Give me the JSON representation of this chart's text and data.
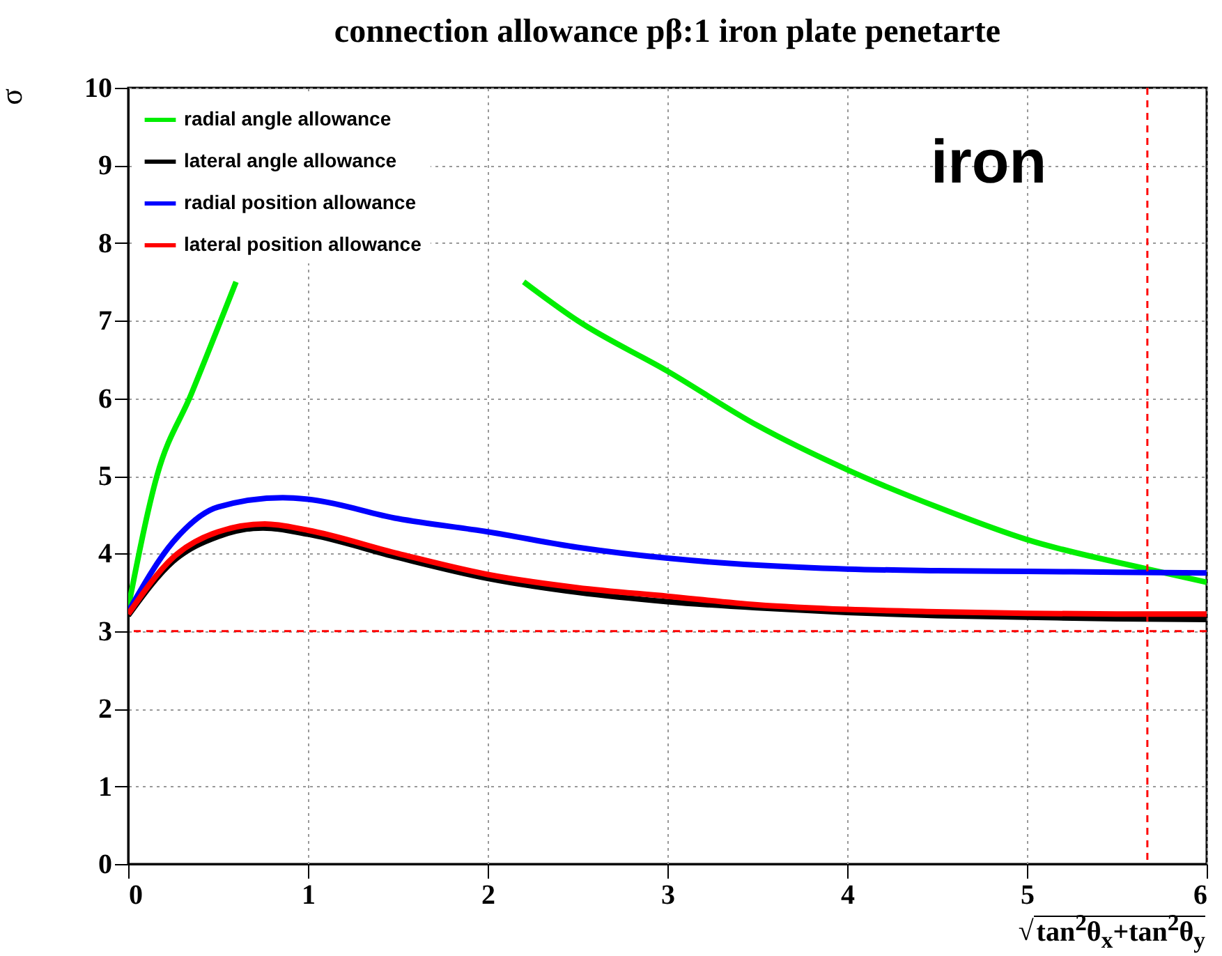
{
  "chart_data": {
    "type": "line",
    "title": "connection allowance pβ:1 iron plate penetarte",
    "xlabel": "√tan$^{2}$θ$_{x}$+tan$^{2}$θ$_{y}$",
    "ylabel": "σ",
    "annotations": [
      "iron"
    ],
    "series": [
      {
        "name": "radial angle allowance",
        "color": "#00ee00",
        "x": [
          0,
          0.16,
          0.35,
          0.6,
          1.0,
          1.5,
          2.2,
          2.5,
          3,
          3.5,
          4,
          4.5,
          5,
          5.67,
          6
        ],
        "values": [
          3.3,
          5.0,
          6.05,
          7.5,
          null,
          null,
          7.5,
          7.0,
          6.35,
          5.65,
          5.08,
          4.6,
          4.18,
          3.8,
          3.63
        ]
      },
      {
        "name": "lateral angle allowance",
        "color": "#000000",
        "x": [
          0,
          0.25,
          0.5,
          0.75,
          1.0,
          1.5,
          2,
          2.5,
          3,
          3.5,
          4,
          4.5,
          5,
          5.5,
          6
        ],
        "values": [
          3.2,
          3.9,
          4.22,
          4.33,
          4.25,
          3.95,
          3.68,
          3.5,
          3.38,
          3.3,
          3.24,
          3.2,
          3.18,
          3.16,
          3.15
        ]
      },
      {
        "name": "radial position allowance",
        "color": "#0000ff",
        "x": [
          0,
          0.25,
          0.5,
          0.86,
          1.0,
          1.5,
          2,
          2.5,
          3,
          3.5,
          4,
          4.5,
          5,
          5.5,
          6
        ],
        "values": [
          3.25,
          4.15,
          4.6,
          4.72,
          4.7,
          4.45,
          4.28,
          4.08,
          3.94,
          3.85,
          3.8,
          3.78,
          3.77,
          3.76,
          3.75
        ]
      },
      {
        "name": "lateral position allowance",
        "color": "#ff0000",
        "x": [
          0,
          0.25,
          0.5,
          0.76,
          1.0,
          1.5,
          2,
          2.5,
          3,
          3.5,
          4,
          4.5,
          5,
          5.5,
          6
        ],
        "values": [
          3.22,
          3.95,
          4.28,
          4.38,
          4.3,
          4.0,
          3.73,
          3.56,
          3.45,
          3.34,
          3.28,
          3.25,
          3.23,
          3.22,
          3.22
        ]
      }
    ],
    "xlim": [
      0,
      6
    ],
    "xticks": [
      0,
      1,
      2,
      3,
      4,
      5,
      6
    ],
    "ylim": [
      0,
      10
    ],
    "yticks": [
      0,
      1,
      2,
      3,
      4,
      5,
      6,
      7,
      8,
      9,
      10
    ],
    "ref_lines": [
      {
        "axis": "y",
        "value": 3,
        "color": "#ff0000",
        "line_style": "dashed"
      },
      {
        "axis": "x",
        "value": 5.67,
        "color": "#ff0000",
        "line_style": "dashed"
      }
    ],
    "grid": true,
    "legend": "top left"
  }
}
